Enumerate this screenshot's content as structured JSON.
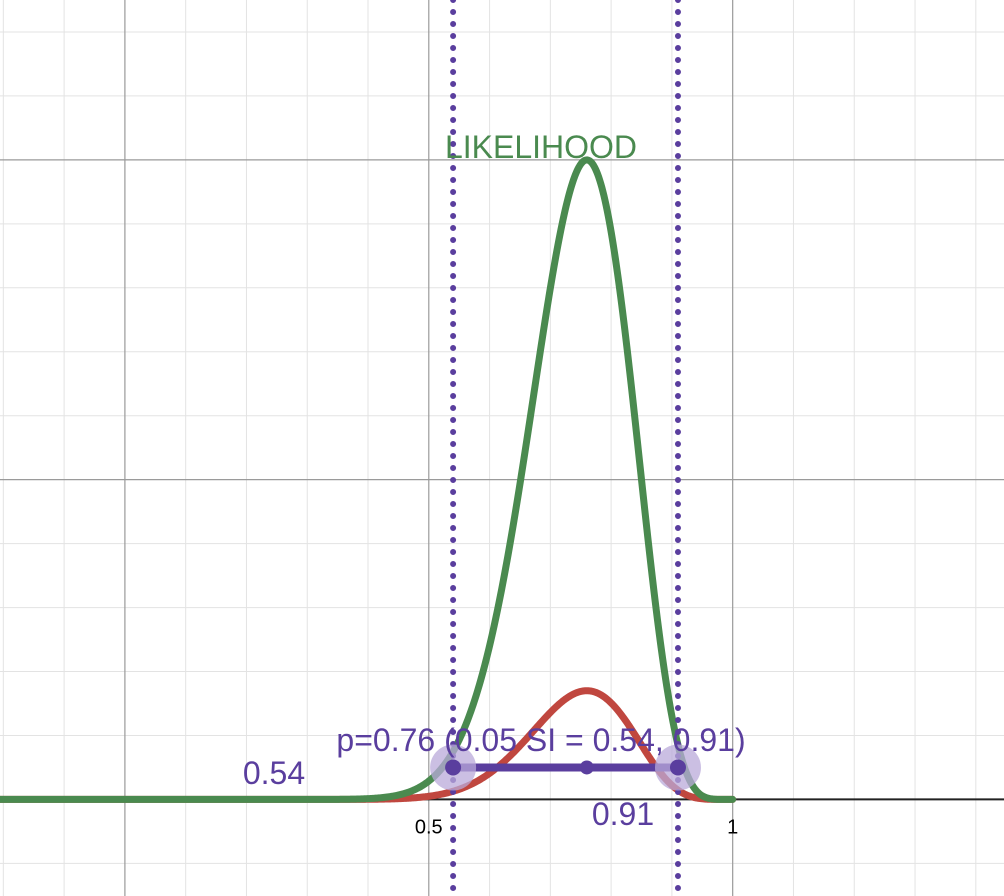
{
  "chart_data": {
    "type": "line",
    "title": "",
    "xlabel": "",
    "ylabel": "",
    "x_ticks": [
      {
        "value": 0.5,
        "label": "0.5"
      },
      {
        "value": 1,
        "label": "1"
      }
    ],
    "grid": true,
    "colors": {
      "likelihood": "#4a8a4f",
      "scaled": "#c0473f",
      "interval": "#5a3e9e",
      "interval_halo": "#b9aad9",
      "grid_minor": "#e3e3e3",
      "grid_major": "#9a9a9a",
      "axis": "#222222"
    },
    "series": [
      {
        "key": "likelihood",
        "name": "LIKELIHOOD",
        "function": "p^19 (1-p)^6 / max",
        "peak_x": 0.76,
        "peak_value": 1.0
      },
      {
        "key": "scaled",
        "function": "p^19 (1-p)^6 / max x 0.17",
        "peak_x": 0.76,
        "peak_value": 0.17
      }
    ],
    "vertical_lines": [
      0.54,
      0.91
    ],
    "interval": {
      "label": "p=0.76 (0.05 SI = 0.54, 0.91)",
      "estimate": 0.76,
      "lower": 0.54,
      "upper": 0.91,
      "lower_label": "0.54",
      "upper_label": "0.91",
      "level_value": 0.05
    }
  }
}
